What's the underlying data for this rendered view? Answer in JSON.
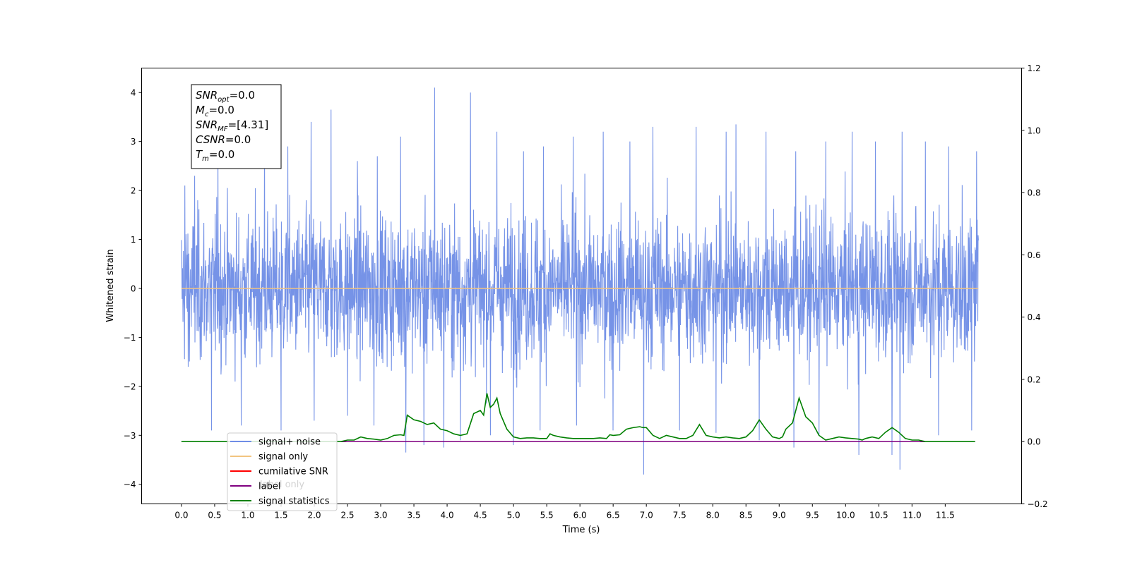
{
  "chart_data": {
    "type": "line",
    "xlabel": "Time (s)",
    "ylabel": "Whitened strain",
    "xlim": [
      -0.6,
      12.65
    ],
    "ylim": [
      -4.4,
      4.5
    ],
    "y2lim": [
      -0.2,
      1.2
    ],
    "x_ticks": [
      0.0,
      0.5,
      1.0,
      1.5,
      2.0,
      2.5,
      3.0,
      3.5,
      4.0,
      4.5,
      5.0,
      5.5,
      6.0,
      6.5,
      7.0,
      7.5,
      8.0,
      8.5,
      9.0,
      9.5,
      10.0,
      10.5,
      11.0,
      11.5
    ],
    "x_tick_labels": [
      "0.0",
      "0.5",
      "1.0",
      "1.5",
      "2.0",
      "2.5",
      "3.0",
      "3.5",
      "4.0",
      "4.5",
      "5.0",
      "5.5",
      "6.0",
      "6.5",
      "7.0",
      "7.5",
      "8.0",
      "8.5",
      "9.0",
      "9.5",
      "10.0",
      "10.5",
      "11.0",
      "11.5"
    ],
    "y_ticks": [
      4,
      3,
      2,
      1,
      0,
      -1,
      -2,
      -3,
      -4
    ],
    "y_tick_labels": [
      "4",
      "3",
      "2",
      "1",
      "0",
      "−1",
      "−2",
      "−3",
      "−4"
    ],
    "y2_ticks": [
      1.2,
      1.0,
      0.8,
      0.6,
      0.4,
      0.2,
      0.0,
      -0.2
    ],
    "y2_tick_labels": [
      "1.2",
      "1.0",
      "0.8",
      "0.6",
      "0.4",
      "0.2",
      "0.0",
      "−0.2"
    ],
    "grid": false,
    "legend_position": "bottom-left",
    "series": [
      {
        "name": "signal+ noise",
        "color": "#6f8de6",
        "axis": "left",
        "x_range": [
          0.0,
          12.0
        ],
        "envelope": "dense noise, mostly within ±2.3, peaks near +4.1 and −3.8",
        "peaks": [
          [
            0.05,
            2.1
          ],
          [
            0.2,
            2.3
          ],
          [
            0.55,
            2.8
          ],
          [
            0.9,
            2.6
          ],
          [
            1.25,
            3.2
          ],
          [
            1.6,
            2.9
          ],
          [
            1.95,
            3.4
          ],
          [
            2.25,
            3.65
          ],
          [
            2.65,
            2.6
          ],
          [
            2.95,
            2.7
          ],
          [
            3.3,
            3.1
          ],
          [
            3.81,
            4.1
          ],
          [
            4.35,
            4.0
          ],
          [
            4.75,
            3.2
          ],
          [
            5.15,
            2.8
          ],
          [
            5.45,
            2.9
          ],
          [
            5.9,
            3.1
          ],
          [
            6.35,
            3.2
          ],
          [
            6.75,
            3.0
          ],
          [
            7.1,
            3.3
          ],
          [
            7.75,
            3.3
          ],
          [
            8.2,
            3.2
          ],
          [
            8.35,
            3.35
          ],
          [
            8.8,
            3.2
          ],
          [
            9.25,
            2.8
          ],
          [
            9.7,
            3.0
          ],
          [
            10.1,
            3.2
          ],
          [
            10.45,
            3.0
          ],
          [
            10.85,
            3.2
          ],
          [
            11.2,
            3.0
          ],
          [
            11.55,
            2.9
          ],
          [
            11.97,
            2.8
          ]
        ],
        "troughs": [
          [
            0.1,
            -1.6
          ],
          [
            0.45,
            -2.9
          ],
          [
            0.9,
            -2.8
          ],
          [
            1.5,
            -2.9
          ],
          [
            2.0,
            -2.7
          ],
          [
            2.5,
            -2.6
          ],
          [
            2.9,
            -2.8
          ],
          [
            3.38,
            -3.35
          ],
          [
            3.65,
            -3.2
          ],
          [
            3.95,
            -3.25
          ],
          [
            4.2,
            -3.1
          ],
          [
            4.65,
            -3.0
          ],
          [
            5.0,
            -3.2
          ],
          [
            5.4,
            -2.9
          ],
          [
            5.95,
            -2.8
          ],
          [
            6.5,
            -2.9
          ],
          [
            6.96,
            -3.8
          ],
          [
            7.5,
            -2.9
          ],
          [
            8.05,
            -2.95
          ],
          [
            8.7,
            -3.1
          ],
          [
            9.22,
            -3.25
          ],
          [
            9.6,
            -3.0
          ],
          [
            10.2,
            -3.4
          ],
          [
            10.7,
            -3.4
          ],
          [
            10.82,
            -3.7
          ],
          [
            11.4,
            -3.0
          ],
          [
            11.9,
            -2.9
          ]
        ]
      },
      {
        "name": "signal only",
        "color": "#f2c480",
        "axis": "left",
        "x": [
          0.0,
          12.0
        ],
        "y": [
          0.0,
          0.0
        ]
      },
      {
        "name": "cumilative SNR",
        "color": "#ff0000",
        "axis": "right",
        "x": [],
        "y": []
      },
      {
        "name": "label",
        "color": "#800080",
        "axis": "right",
        "x": [
          0.0,
          11.95
        ],
        "y": [
          0.0,
          0.0
        ]
      },
      {
        "name": "signal statistics",
        "color": "#008000",
        "axis": "right",
        "x": [
          0.0,
          2.4,
          2.5,
          2.6,
          2.7,
          2.8,
          2.9,
          3.0,
          3.1,
          3.2,
          3.3,
          3.35,
          3.4,
          3.5,
          3.6,
          3.7,
          3.8,
          3.9,
          4.0,
          4.1,
          4.2,
          4.3,
          4.4,
          4.5,
          4.55,
          4.6,
          4.65,
          4.7,
          4.75,
          4.8,
          4.9,
          5.0,
          5.1,
          5.2,
          5.3,
          5.4,
          5.5,
          5.55,
          5.6,
          5.7,
          5.8,
          5.9,
          6.0,
          6.1,
          6.2,
          6.3,
          6.4,
          6.45,
          6.5,
          6.6,
          6.7,
          6.8,
          6.9,
          6.95,
          7.0,
          7.1,
          7.2,
          7.3,
          7.4,
          7.5,
          7.6,
          7.7,
          7.8,
          7.9,
          8.0,
          8.1,
          8.2,
          8.3,
          8.4,
          8.5,
          8.6,
          8.7,
          8.8,
          8.9,
          9.0,
          9.05,
          9.1,
          9.2,
          9.3,
          9.4,
          9.5,
          9.6,
          9.7,
          9.8,
          9.9,
          10.0,
          10.1,
          10.2,
          10.25,
          10.3,
          10.4,
          10.5,
          10.6,
          10.7,
          10.8,
          10.9,
          11.0,
          11.1,
          11.2,
          11.3,
          11.95
        ],
        "y": [
          0.0,
          0.0,
          0.005,
          0.005,
          0.015,
          0.01,
          0.008,
          0.005,
          0.01,
          0.02,
          0.022,
          0.02,
          0.085,
          0.07,
          0.065,
          0.055,
          0.06,
          0.04,
          0.035,
          0.025,
          0.02,
          0.025,
          0.09,
          0.1,
          0.085,
          0.155,
          0.11,
          0.12,
          0.14,
          0.09,
          0.04,
          0.015,
          0.01,
          0.012,
          0.012,
          0.01,
          0.01,
          0.025,
          0.02,
          0.015,
          0.012,
          0.01,
          0.01,
          0.01,
          0.01,
          0.012,
          0.01,
          0.022,
          0.02,
          0.022,
          0.04,
          0.045,
          0.048,
          0.045,
          0.045,
          0.02,
          0.01,
          0.02,
          0.015,
          0.01,
          0.01,
          0.02,
          0.055,
          0.02,
          0.015,
          0.012,
          0.015,
          0.012,
          0.01,
          0.015,
          0.035,
          0.07,
          0.04,
          0.015,
          0.01,
          0.015,
          0.04,
          0.06,
          0.14,
          0.08,
          0.06,
          0.02,
          0.005,
          0.01,
          0.015,
          0.012,
          0.01,
          0.008,
          0.005,
          0.01,
          0.015,
          0.01,
          0.03,
          0.045,
          0.03,
          0.01,
          0.005,
          0.005,
          0.0,
          0.0,
          0.0
        ]
      }
    ],
    "annotation_lines": [
      {
        "sym": "SNR",
        "sub": "opt",
        "val": "=0.0"
      },
      {
        "sym": "M",
        "sub": "c",
        "val": "=0.0"
      },
      {
        "sym": "SNR",
        "sub": "MF",
        "val": "=[4.31]"
      },
      {
        "sym": "CSNR",
        "sub": "",
        "val": "=0.0"
      },
      {
        "sym": "T",
        "sub": "m",
        "val": "=0.0"
      }
    ],
    "legend": [
      {
        "label": "signal+ noise",
        "color": "#6f8de6"
      },
      {
        "label": "signal only",
        "color": "#f2c480"
      },
      {
        "label": "cumilative SNR",
        "color": "#ff0000"
      },
      {
        "label": "label",
        "color": "#800080"
      },
      {
        "label": "signal statistics",
        "color": "#008000"
      }
    ],
    "ghost_legend_labels": [
      "label only",
      "signal statistics"
    ]
  }
}
